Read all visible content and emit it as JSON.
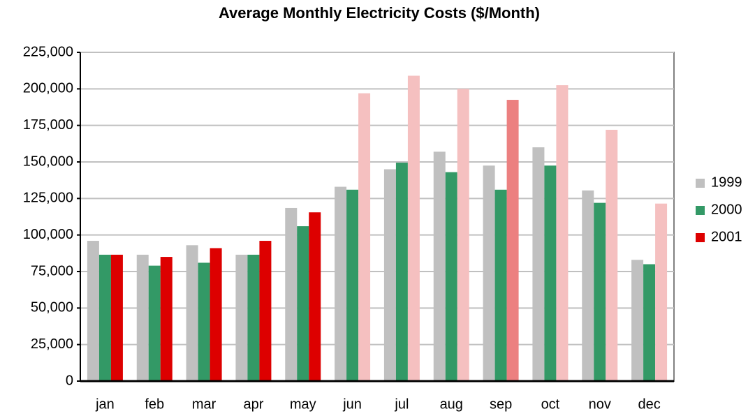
{
  "chart_data": {
    "type": "bar",
    "title": "Average Monthly Electricity Costs ($/Month)",
    "categories": [
      "jan",
      "feb",
      "mar",
      "apr",
      "may",
      "jun",
      "jul",
      "aug",
      "sep",
      "oct",
      "nov",
      "dec"
    ],
    "series": [
      {
        "name": "1999",
        "color": "#c0c0c0",
        "values": [
          96000,
          86500,
          93000,
          86500,
          118500,
          133000,
          145000,
          157000,
          147500,
          160000,
          130500,
          83000
        ]
      },
      {
        "name": "2000",
        "color": "#339966",
        "values": [
          86500,
          79000,
          81000,
          86500,
          106000,
          131000,
          149500,
          143000,
          131000,
          147500,
          122000,
          80000
        ]
      },
      {
        "name": "2001",
        "color": "#dd0000",
        "values": [
          86500,
          85000,
          91000,
          96000,
          115500,
          197000,
          209000,
          200000,
          192500,
          202500,
          172000,
          121500
        ],
        "colors": [
          "#dd0000",
          "#dd0000",
          "#dd0000",
          "#dd0000",
          "#dd0000",
          "#f5c0c0",
          "#f5c0c0",
          "#f5c0c0",
          "#ec8080",
          "#f5c0c0",
          "#f5c0c0",
          "#f5c0c0"
        ]
      }
    ],
    "ylim": [
      0,
      225000
    ],
    "yticks": [
      0,
      {
        "value": 25000,
        "label": "25,000"
      },
      {
        "value": 50000,
        "label": "50,000"
      },
      {
        "value": 75000,
        "label": "75,000"
      },
      {
        "value": 100000,
        "label": "100,000"
      },
      {
        "value": 125000,
        "label": "125,000"
      },
      {
        "value": 150000,
        "label": "150,000"
      },
      {
        "value": 175000,
        "label": "175,000"
      },
      {
        "value": 200000,
        "label": "200,000"
      },
      {
        "value": 225000,
        "label": "225,000"
      }
    ],
    "grid": true
  }
}
